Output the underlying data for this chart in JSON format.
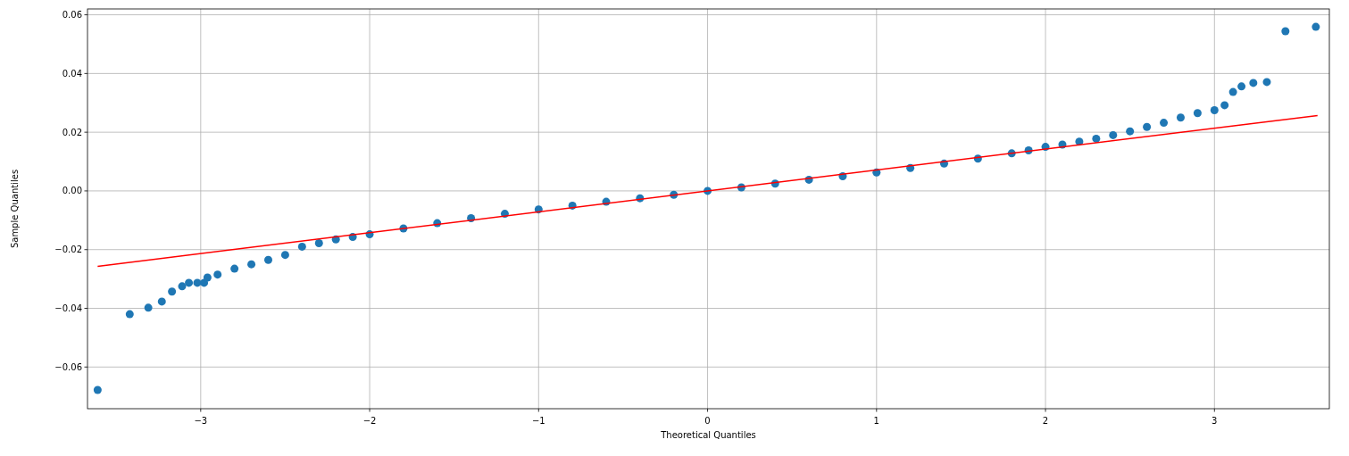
{
  "chart_data": {
    "type": "scatter",
    "xlabel": "Theoretical Quantiles",
    "ylabel": "Sample Quantiles",
    "xlim": [
      -3.67,
      3.68
    ],
    "ylim": [
      -0.0742,
      0.062
    ],
    "xticks": [
      {
        "value": -3,
        "label": "−3"
      },
      {
        "value": -2,
        "label": "−2"
      },
      {
        "value": -1,
        "label": "−1"
      },
      0,
      1,
      2,
      3
    ],
    "yticks": [
      {
        "value": -0.06,
        "label": "−0.06"
      },
      {
        "value": -0.04,
        "label": "−0.04"
      },
      {
        "value": -0.02,
        "label": "−0.02"
      },
      {
        "value": 0,
        "label": "0.00"
      },
      {
        "value": 0.02,
        "label": "0.02"
      },
      {
        "value": 0.04,
        "label": "0.04"
      },
      {
        "value": 0.06,
        "label": "0.06"
      }
    ],
    "grid": true,
    "marker": "circle",
    "series": [
      {
        "color": "#1f77b4",
        "x": [
          -3.61,
          -3.42,
          -3.31,
          -3.23,
          -3.17,
          -3.11,
          -3.07,
          -3.02,
          -2.98,
          -2.96,
          -2.9,
          -2.8,
          -2.7,
          -2.6,
          -2.5,
          -2.4,
          -2.3,
          -2.2,
          -2.1,
          -2.0,
          -1.8,
          -1.6,
          -1.4,
          -1.2,
          -1.0,
          -0.8,
          -0.6,
          -0.4,
          -0.2,
          0,
          0.2,
          0.4,
          0.6,
          0.8,
          1.0,
          1.2,
          1.4,
          1.6,
          1.8,
          1.9,
          2.0,
          2.1,
          2.2,
          2.3,
          2.4,
          2.5,
          2.6,
          2.7,
          2.8,
          2.9,
          3.0,
          3.06,
          3.11,
          3.16,
          3.23,
          3.31,
          3.42,
          3.6
        ],
        "values": [
          -0.0678,
          -0.042,
          -0.0398,
          -0.0377,
          -0.0343,
          -0.0325,
          -0.0313,
          -0.0313,
          -0.0313,
          -0.0295,
          -0.0285,
          -0.0265,
          -0.025,
          -0.0235,
          -0.0218,
          -0.019,
          -0.0178,
          -0.0165,
          -0.0157,
          -0.0148,
          -0.0128,
          -0.011,
          -0.0093,
          -0.0078,
          -0.0063,
          -0.005,
          -0.0037,
          -0.0025,
          -0.0013,
          0,
          0.0012,
          0.0025,
          0.0038,
          0.005,
          0.0063,
          0.0078,
          0.0093,
          0.011,
          0.0128,
          0.0138,
          0.015,
          0.0158,
          0.0168,
          0.0178,
          0.019,
          0.0203,
          0.0218,
          0.0232,
          0.025,
          0.0265,
          0.0275,
          0.0292,
          0.0337,
          0.0356,
          0.0368,
          0.0371,
          0.0544,
          0.0559
        ]
      },
      {
        "type": "line",
        "color": "#ff0000",
        "marker": "none",
        "x": [
          -3.61,
          3.61
        ],
        "values": [
          -0.0257,
          0.0257
        ]
      }
    ]
  }
}
